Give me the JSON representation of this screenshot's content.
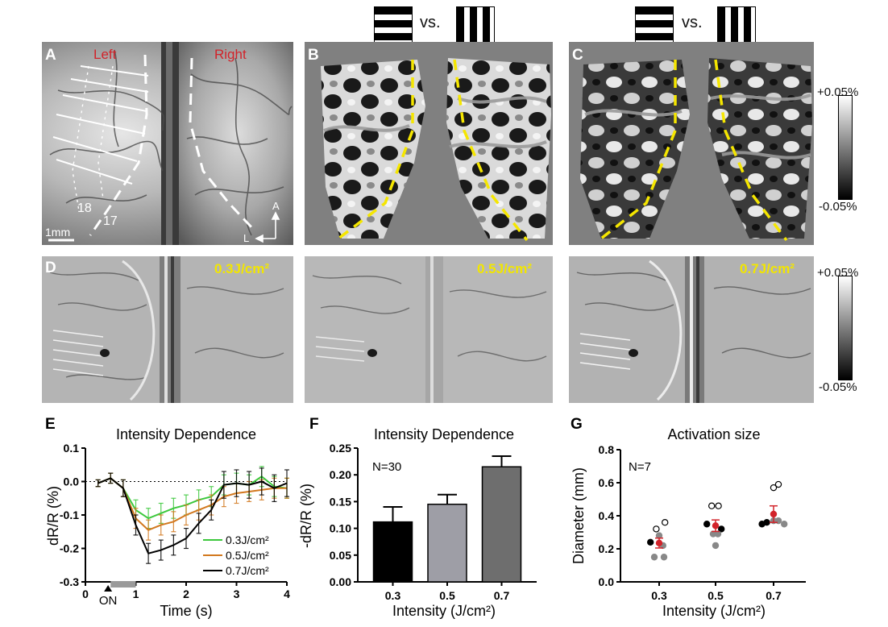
{
  "panels": {
    "A": {
      "letter": "A",
      "left_label": "Left",
      "right_label": "Right",
      "area1": "18",
      "area2": "17",
      "scale": "1mm",
      "ant": "A",
      "lat": "L"
    },
    "B": {
      "letter": "B"
    },
    "C": {
      "letter": "C"
    },
    "D": {
      "letter": "D"
    },
    "vs_label": "vs.",
    "colorbar_top": {
      "max": "+0.05%",
      "min": "-0.05%"
    },
    "colorbar_bottom": {
      "max": "+0.05%",
      "min": "-0.05%"
    },
    "intensities": [
      "0.3J/cm²",
      "0.5J/cm²",
      "0.7J/cm²"
    ]
  },
  "colors": {
    "red_label": "#d2232a",
    "yellow_dash": "#f5e600",
    "green": "#3cc83c",
    "orange": "#d2781e",
    "black": "#000000",
    "gray_bar": "#9e9ea6",
    "dark_gray_bar": "#6e6e6e",
    "red_point": "#d2232a"
  },
  "chart_data": [
    {
      "id": "E",
      "letter": "E",
      "type": "line",
      "title": "Intensity Dependence",
      "xlabel": "Time (s)",
      "ylabel": "dR/R (%)",
      "xlim": [
        0,
        4
      ],
      "ylim": [
        -0.3,
        0.1
      ],
      "xticks": [
        "0",
        "1",
        "2",
        "3",
        "4"
      ],
      "yticks": [
        "0.1",
        "0.0",
        "-0.1",
        "-0.2",
        "-0.3"
      ],
      "stim_label": "ON",
      "stim_interval": [
        0.5,
        1.0
      ],
      "x": [
        0.25,
        0.5,
        0.75,
        1.0,
        1.25,
        1.5,
        1.75,
        2.0,
        2.25,
        2.5,
        2.75,
        3.0,
        3.25,
        3.5,
        3.75,
        4.0
      ],
      "series": [
        {
          "name": "0.3J/cm²",
          "color": "#3cc83c",
          "values": [
            -0.005,
            0.01,
            -0.02,
            -0.085,
            -0.11,
            -0.095,
            -0.08,
            -0.07,
            -0.055,
            -0.045,
            -0.01,
            -0.005,
            -0.01,
            0.015,
            -0.015,
            -0.02
          ],
          "errors": [
            0.01,
            0.015,
            0.025,
            0.03,
            0.03,
            0.03,
            0.03,
            0.03,
            0.03,
            0.03,
            0.03,
            0.03,
            0.03,
            0.03,
            0.03,
            0.03
          ]
        },
        {
          "name": "0.5J/cm²",
          "color": "#d2781e",
          "values": [
            -0.005,
            0.01,
            -0.02,
            -0.11,
            -0.145,
            -0.13,
            -0.12,
            -0.1,
            -0.085,
            -0.07,
            -0.045,
            -0.035,
            -0.03,
            -0.025,
            -0.02,
            -0.02
          ],
          "errors": [
            0.01,
            0.015,
            0.025,
            0.03,
            0.03,
            0.03,
            0.03,
            0.03,
            0.03,
            0.03,
            0.03,
            0.03,
            0.03,
            0.03,
            0.03,
            0.03
          ]
        },
        {
          "name": "0.7J/cm²",
          "color": "#000000",
          "values": [
            -0.005,
            0.01,
            -0.02,
            -0.13,
            -0.215,
            -0.205,
            -0.19,
            -0.17,
            -0.125,
            -0.085,
            -0.01,
            -0.005,
            -0.01,
            0.0,
            -0.02,
            -0.005
          ],
          "errors": [
            0.01,
            0.015,
            0.025,
            0.03,
            0.03,
            0.03,
            0.03,
            0.03,
            0.03,
            0.03,
            0.04,
            0.04,
            0.04,
            0.04,
            0.04,
            0.04
          ]
        }
      ]
    },
    {
      "id": "F",
      "letter": "F",
      "type": "bar",
      "title": "Intensity Dependence",
      "annotation": "N=30",
      "xlabel": "Intensity (J/cm²)",
      "ylabel": "-dR/R (%)",
      "ylim": [
        0,
        0.25
      ],
      "yticks": [
        "0.00",
        "0.05",
        "0.10",
        "0.15",
        "0.20",
        "0.25"
      ],
      "categories": [
        "0.3",
        "0.5",
        "0.7"
      ],
      "values": [
        0.112,
        0.145,
        0.215
      ],
      "errors": [
        0.028,
        0.018,
        0.02
      ],
      "bar_colors": [
        "#000000",
        "#9e9ea6",
        "#6e6e6e"
      ]
    },
    {
      "id": "G",
      "letter": "G",
      "type": "scatter",
      "title": "Activation size",
      "annotation": "N=7",
      "xlabel": "Intensity (J/cm²)",
      "ylabel": "Diameter (mm)",
      "ylim": [
        0,
        0.8
      ],
      "yticks": [
        "0.0",
        "0.2",
        "0.4",
        "0.6",
        "0.8"
      ],
      "categories": [
        "0.3",
        "0.5",
        "0.7"
      ],
      "groups": [
        {
          "points": [
            {
              "dx": -0.18,
              "y": 0.24,
              "fill": "#000000",
              "open": false
            },
            {
              "dx": -0.06,
              "y": 0.32,
              "fill": "#ffffff",
              "open": true
            },
            {
              "dx": 0.12,
              "y": 0.36,
              "fill": "#ffffff",
              "open": true
            },
            {
              "dx": 0.0,
              "y": 0.28,
              "fill": "#888888",
              "open": false
            },
            {
              "dx": 0.08,
              "y": 0.22,
              "fill": "#888888",
              "open": false
            },
            {
              "dx": -0.1,
              "y": 0.15,
              "fill": "#888888",
              "open": false
            },
            {
              "dx": 0.1,
              "y": 0.15,
              "fill": "#888888",
              "open": false
            }
          ],
          "mean": 0.235,
          "err": 0.03
        },
        {
          "points": [
            {
              "dx": -0.18,
              "y": 0.35,
              "fill": "#000000",
              "open": false
            },
            {
              "dx": 0.12,
              "y": 0.32,
              "fill": "#000000",
              "open": false
            },
            {
              "dx": -0.08,
              "y": 0.46,
              "fill": "#ffffff",
              "open": true
            },
            {
              "dx": 0.06,
              "y": 0.46,
              "fill": "#ffffff",
              "open": true
            },
            {
              "dx": -0.05,
              "y": 0.29,
              "fill": "#888888",
              "open": false
            },
            {
              "dx": 0.0,
              "y": 0.22,
              "fill": "#888888",
              "open": false
            },
            {
              "dx": 0.05,
              "y": 0.29,
              "fill": "#888888",
              "open": false
            }
          ],
          "mean": 0.34,
          "err": 0.035
        },
        {
          "points": [
            {
              "dx": -0.24,
              "y": 0.35,
              "fill": "#000000",
              "open": false
            },
            {
              "dx": -0.14,
              "y": 0.36,
              "fill": "#000000",
              "open": false
            },
            {
              "dx": 0.0,
              "y": 0.57,
              "fill": "#ffffff",
              "open": true
            },
            {
              "dx": 0.1,
              "y": 0.59,
              "fill": "#ffffff",
              "open": true
            },
            {
              "dx": 0.0,
              "y": 0.37,
              "fill": "#888888",
              "open": false
            },
            {
              "dx": 0.1,
              "y": 0.37,
              "fill": "#888888",
              "open": false
            },
            {
              "dx": 0.22,
              "y": 0.35,
              "fill": "#888888",
              "open": false
            }
          ],
          "mean": 0.41,
          "err": 0.05
        }
      ],
      "mean_color": "#d2232a"
    }
  ]
}
